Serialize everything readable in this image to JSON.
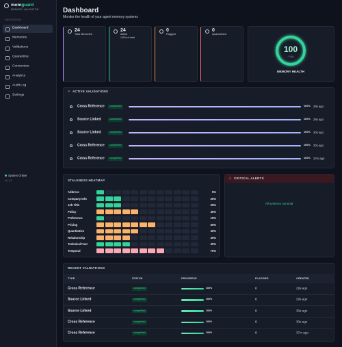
{
  "sidebar": {
    "brand_prefix": "mem",
    "brand_suffix": "guard",
    "tagline": "MEMORY VALIDATOR",
    "section": "NAVIGATION",
    "nav": [
      "Dashboard",
      "Memories",
      "Validations",
      "Quarantine",
      "Connectors",
      "Analytics",
      "Audit Log",
      "Settings"
    ],
    "status": "System Online",
    "version": "v0.1.0"
  },
  "header": {
    "title": "Dashboard",
    "subtitle": "Monitor the health of your agent memory systems"
  },
  "stats": [
    {
      "value": 24,
      "label": "Total Memories",
      "color": "#a78bfa"
    },
    {
      "value": 24,
      "label": "Active",
      "sub": "100% of total",
      "color": "#34d399"
    },
    {
      "value": 0,
      "label": "Flagged",
      "color": "#fb923c"
    },
    {
      "value": 0,
      "label": "Quarantined",
      "color": "#f87171"
    }
  ],
  "health": {
    "value": 100,
    "max": {
      "value": 100,
      "label": "/ 100"
    },
    "label": "MEMORY HEALTH",
    "color": "#34d399"
  },
  "active_validations": {
    "title": "ACTIVE VALIDATIONS",
    "rows": [
      {
        "type": "Cross Reference",
        "status": "completed",
        "progress": 100,
        "progress_label": "100%",
        "time": "29s ago"
      },
      {
        "type": "Source Linked",
        "status": "completed",
        "progress": 100,
        "progress_label": "100%",
        "time": "29s ago"
      },
      {
        "type": "Source Linked",
        "status": "completed",
        "progress": 100,
        "progress_label": "100%",
        "time": "30s ago"
      },
      {
        "type": "Cross Reference",
        "status": "completed",
        "progress": 100,
        "progress_label": "100%",
        "time": "30s ago"
      },
      {
        "type": "Cross Reference",
        "status": "completed",
        "progress": 100,
        "progress_label": "100%",
        "time": "37m ago"
      }
    ]
  },
  "heatmap": {
    "title": "STALENESS HEATMAP",
    "rows": [
      {
        "label": "Address",
        "value": 5,
        "value_label": "5%",
        "color": "#34d399"
      },
      {
        "label": "Company Info",
        "value": 25,
        "value_label": "25%",
        "color": "#34d399"
      },
      {
        "label": "Job Title",
        "value": 25,
        "value_label": "25%",
        "color": "#34d399"
      },
      {
        "label": "Policy",
        "value": 45,
        "value_label": "45%",
        "color": "#fbb26a"
      },
      {
        "label": "Preference",
        "value": 10,
        "value_label": "10%",
        "color": "#34d399"
      },
      {
        "label": "Pricing",
        "value": 55,
        "value_label": "55%",
        "color": "#fbb26a"
      },
      {
        "label": "Quantitative",
        "value": 40,
        "value_label": "40%",
        "color": "#fbb26a"
      },
      {
        "label": "Relationship",
        "value": 35,
        "value_label": "35%",
        "color": "#fbb26a"
      },
      {
        "label": "Technical Fact",
        "value": 30,
        "value_label": "30%",
        "color": "#34d399"
      },
      {
        "label": "Temporal",
        "value": 70,
        "value_label": "70%",
        "color": "#f9a8b4"
      }
    ]
  },
  "alerts": {
    "title": "CRITICAL ALERTS",
    "message": "All systems nominal"
  },
  "recent": {
    "title": "RECENT VALIDATIONS",
    "columns": [
      "TYPE",
      "STATUS",
      "PROGRESS",
      "FLAGGED",
      "CREATED"
    ],
    "rows": [
      {
        "type": "Cross Reference",
        "status": "completed",
        "progress": 100,
        "progress_label": "100%",
        "flagged": 0,
        "created": "29s ago"
      },
      {
        "type": "Source Linked",
        "status": "completed",
        "progress": 100,
        "progress_label": "100%",
        "flagged": 0,
        "created": "29s ago"
      },
      {
        "type": "Source Linked",
        "status": "completed",
        "progress": 100,
        "progress_label": "100%",
        "flagged": 0,
        "created": "30s ago"
      },
      {
        "type": "Cross Reference",
        "status": "completed",
        "progress": 100,
        "progress_label": "100%",
        "flagged": 0,
        "created": "30s ago"
      },
      {
        "type": "Cross Reference",
        "status": "completed",
        "progress": 100,
        "progress_label": "100%",
        "flagged": 0,
        "created": "37m ago"
      }
    ]
  }
}
